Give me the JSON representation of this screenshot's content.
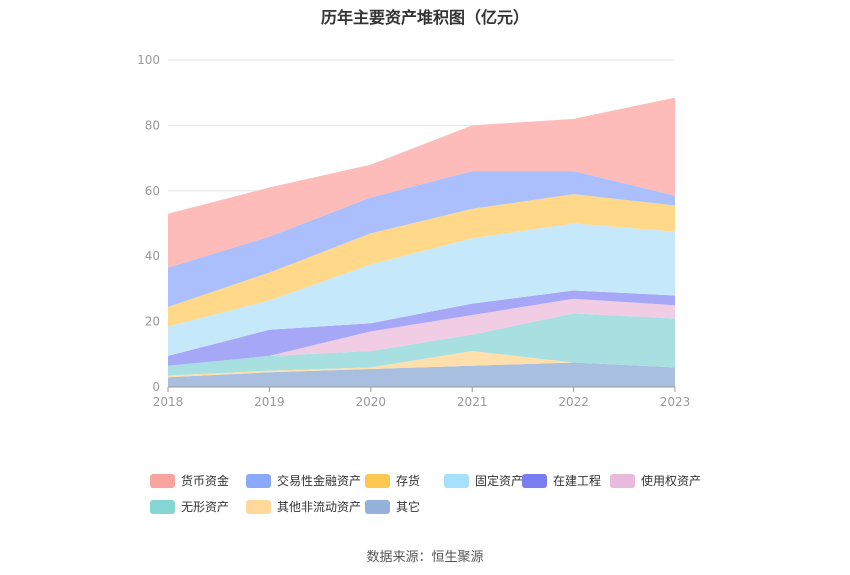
{
  "chart_data": {
    "type": "area",
    "stacked": true,
    "title": "历年主要资产堆积图（亿元）",
    "x": [
      "2018",
      "2019",
      "2020",
      "2021",
      "2022",
      "2023"
    ],
    "ylim": [
      0,
      100
    ],
    "yticks": [
      0,
      20,
      40,
      60,
      80,
      100
    ],
    "grid": true,
    "legend_position": "bottom",
    "series": [
      {
        "name": "其它",
        "color": "#a9bfe0",
        "values": [
          3.0,
          4.5,
          5.5,
          6.5,
          7.5,
          6.0
        ]
      },
      {
        "name": "其他非流动资产",
        "color": "#ffe0ad",
        "values": [
          0.5,
          0.5,
          0.5,
          4.5,
          0.0,
          0.0
        ]
      },
      {
        "name": "无形资产",
        "color": "#a8dfe0",
        "values": [
          3.0,
          4.5,
          5.0,
          5.0,
          15.0,
          15.0
        ]
      },
      {
        "name": "使用权资产",
        "color": "#f0cde4",
        "values": [
          0.0,
          0.0,
          6.0,
          6.0,
          4.5,
          4.0
        ]
      },
      {
        "name": "在建工程",
        "color": "#a6a7f6",
        "values": [
          3.0,
          8.0,
          2.5,
          3.5,
          2.5,
          3.0
        ]
      },
      {
        "name": "固定资产",
        "color": "#c5e9fb",
        "values": [
          9.0,
          9.0,
          18.0,
          20.0,
          20.5,
          19.5
        ]
      },
      {
        "name": "存货",
        "color": "#ffd88a",
        "values": [
          6.0,
          8.5,
          9.5,
          9.0,
          9.0,
          8.0
        ]
      },
      {
        "name": "交易性金融资产",
        "color": "#aabffc",
        "values": [
          12.0,
          11.0,
          11.0,
          11.5,
          7.0,
          3.0
        ]
      },
      {
        "name": "货币资金",
        "color": "#fdbcba",
        "values": [
          16.5,
          15.0,
          10.0,
          14.0,
          16.0,
          30.0
        ]
      }
    ]
  },
  "legend": [
    {
      "name": "货币资金",
      "color": "#f8a39e"
    },
    {
      "name": "交易性金融资产",
      "color": "#8aa9f8"
    },
    {
      "name": "存货",
      "color": "#fec74f"
    },
    {
      "name": "固定资产",
      "color": "#a6e0fa"
    },
    {
      "name": "在建工程",
      "color": "#7a7cf1"
    },
    {
      "name": "使用权资产",
      "color": "#e9badc"
    },
    {
      "name": "无形资产",
      "color": "#86d6d8"
    },
    {
      "name": "其他非流动资产",
      "color": "#ffd89a"
    },
    {
      "name": "其它",
      "color": "#94b2db"
    }
  ],
  "source": "数据来源：恒生聚源"
}
